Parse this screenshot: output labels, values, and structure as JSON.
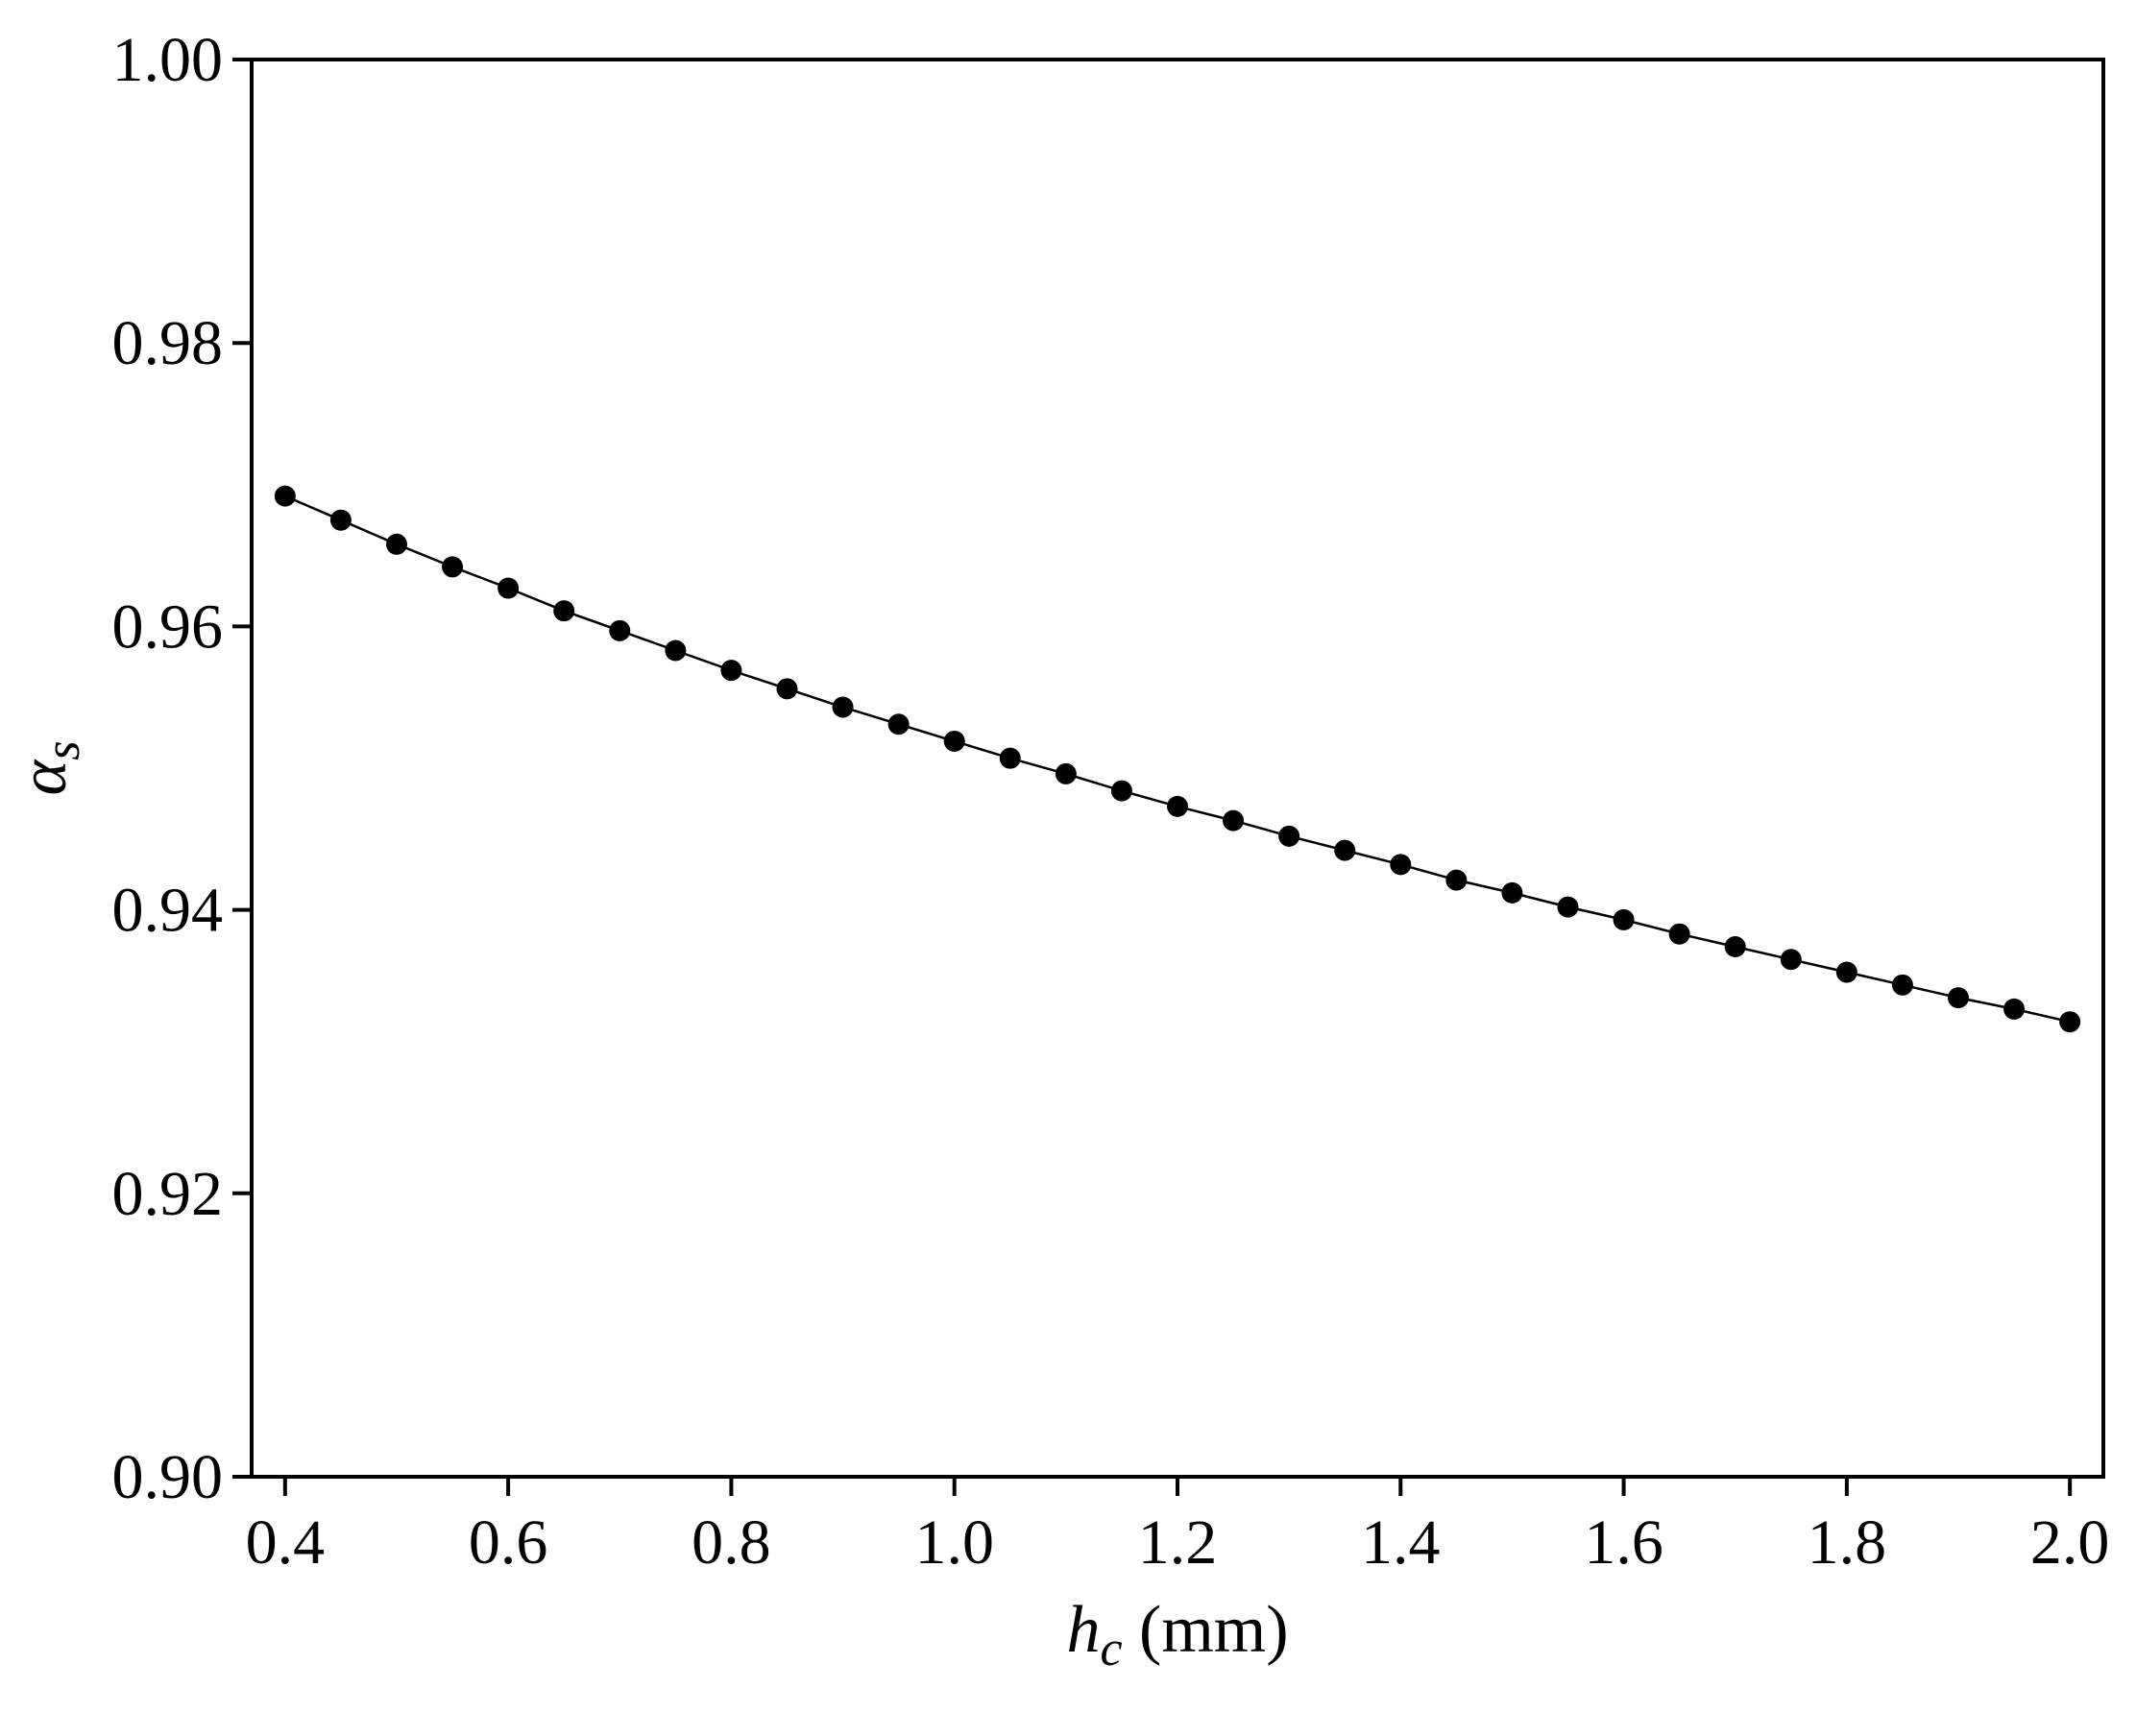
{
  "chart_data": {
    "type": "line",
    "title": "",
    "xlabel": {
      "symbol": "h",
      "subscript": "c",
      "unit": " (mm)"
    },
    "ylabel": {
      "symbol": "α",
      "subscript": "s"
    },
    "xlim": [
      0.37,
      2.03
    ],
    "ylim": [
      0.9,
      1.0
    ],
    "xticks": [
      "0.4",
      "0.6",
      "0.8",
      "1.0",
      "1.2",
      "1.4",
      "1.6",
      "1.8",
      "2.0"
    ],
    "yticks": [
      "0.90",
      "0.92",
      "0.94",
      "0.96",
      "0.98",
      "1.00"
    ],
    "grid": false,
    "series": [
      {
        "color": "#000000",
        "marker": "filled-circle",
        "x": [
          0.4,
          0.45,
          0.5,
          0.55,
          0.6,
          0.65,
          0.7,
          0.75,
          0.8,
          0.85,
          0.9,
          0.95,
          1.0,
          1.05,
          1.1,
          1.15,
          1.2,
          1.25,
          1.3,
          1.35,
          1.4,
          1.45,
          1.5,
          1.55,
          1.6,
          1.65,
          1.7,
          1.75,
          1.8,
          1.85,
          1.9,
          1.95,
          2.0
        ],
        "y": [
          0.9692,
          0.9675,
          0.9658,
          0.9642,
          0.9627,
          0.9611,
          0.9597,
          0.9583,
          0.9569,
          0.9556,
          0.9543,
          0.9531,
          0.9519,
          0.9507,
          0.9496,
          0.9484,
          0.9473,
          0.9463,
          0.9452,
          0.9442,
          0.9432,
          0.9421,
          0.9412,
          0.9402,
          0.9393,
          0.9383,
          0.9374,
          0.9365,
          0.9356,
          0.9347,
          0.9338,
          0.933,
          0.9321
        ]
      }
    ]
  }
}
